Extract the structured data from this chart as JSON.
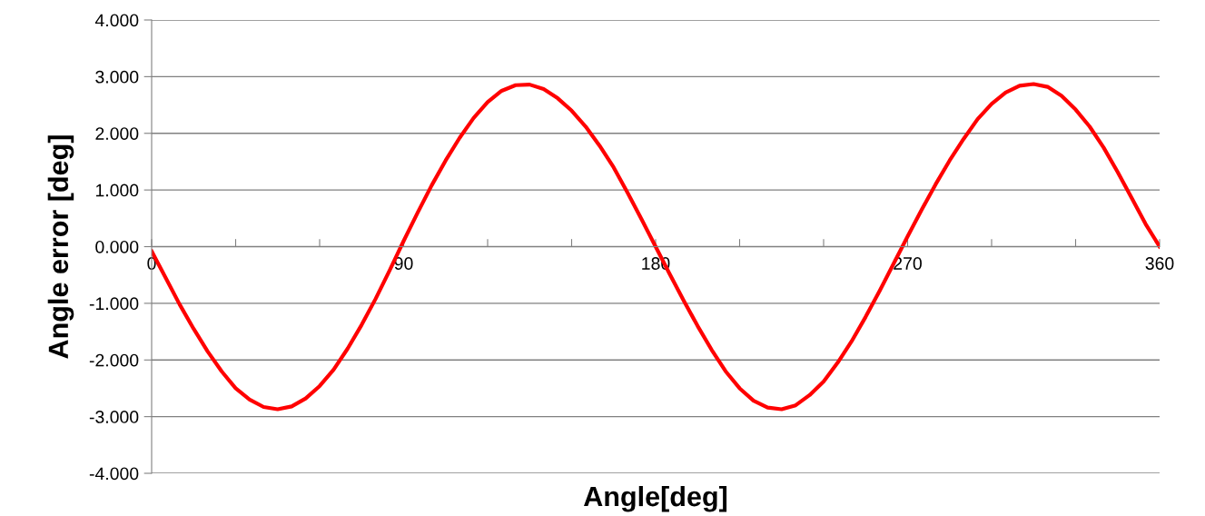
{
  "chart_data": {
    "type": "line",
    "xlabel": "Angle[deg]",
    "ylabel": "Angle error [deg]",
    "x": [
      0,
      5,
      10,
      15,
      20,
      25,
      30,
      35,
      40,
      45,
      50,
      55,
      60,
      65,
      70,
      75,
      80,
      85,
      90,
      95,
      100,
      105,
      110,
      115,
      120,
      125,
      130,
      135,
      140,
      145,
      150,
      155,
      160,
      165,
      170,
      175,
      180,
      185,
      190,
      195,
      200,
      205,
      210,
      215,
      220,
      225,
      230,
      235,
      240,
      245,
      250,
      255,
      260,
      265,
      270,
      275,
      280,
      285,
      290,
      295,
      300,
      305,
      310,
      315,
      320,
      325,
      330,
      335,
      340,
      345,
      350,
      355,
      360
    ],
    "series": [
      {
        "color": "#ff0000",
        "values": [
          -0.08,
          -0.55,
          -1.02,
          -1.45,
          -1.85,
          -2.2,
          -2.5,
          -2.7,
          -2.83,
          -2.87,
          -2.82,
          -2.68,
          -2.46,
          -2.17,
          -1.8,
          -1.38,
          -0.92,
          -0.42,
          0.1,
          0.6,
          1.08,
          1.52,
          1.92,
          2.27,
          2.55,
          2.75,
          2.85,
          2.86,
          2.78,
          2.62,
          2.4,
          2.12,
          1.78,
          1.4,
          0.95,
          0.48,
          0.0,
          -0.48,
          -0.95,
          -1.4,
          -1.82,
          -2.2,
          -2.5,
          -2.72,
          -2.84,
          -2.87,
          -2.8,
          -2.62,
          -2.38,
          -2.05,
          -1.67,
          -1.24,
          -0.78,
          -0.3,
          0.18,
          0.65,
          1.1,
          1.52,
          1.9,
          2.25,
          2.52,
          2.72,
          2.84,
          2.87,
          2.82,
          2.66,
          2.42,
          2.12,
          1.75,
          1.32,
          0.86,
          0.4,
          0.0
        ]
      }
    ],
    "xlim": [
      0,
      360
    ],
    "ylim": [
      -4,
      4
    ],
    "xticks": [
      0,
      {
        "value": 30,
        "label": null
      },
      {
        "value": 60,
        "label": null
      },
      90,
      {
        "value": 120,
        "label": null
      },
      {
        "value": 150,
        "label": null
      },
      180,
      {
        "value": 210,
        "label": null
      },
      {
        "value": 240,
        "label": null
      },
      270,
      {
        "value": 300,
        "label": null
      },
      {
        "value": 330,
        "label": null
      },
      360
    ],
    "yticks": [
      {
        "value": -4,
        "label": "-4.000"
      },
      {
        "value": -3,
        "label": "-3.000"
      },
      {
        "value": -2,
        "label": "-2.000"
      },
      {
        "value": -1,
        "label": "-1.000"
      },
      {
        "value": 0,
        "label": "0.000"
      },
      {
        "value": 1,
        "label": "1.000"
      },
      {
        "value": 2,
        "label": "2.000"
      },
      {
        "value": 3,
        "label": "3.000"
      },
      {
        "value": 4,
        "label": "4.000"
      }
    ],
    "grid": "y",
    "marker": "none",
    "line_style": "solid"
  }
}
